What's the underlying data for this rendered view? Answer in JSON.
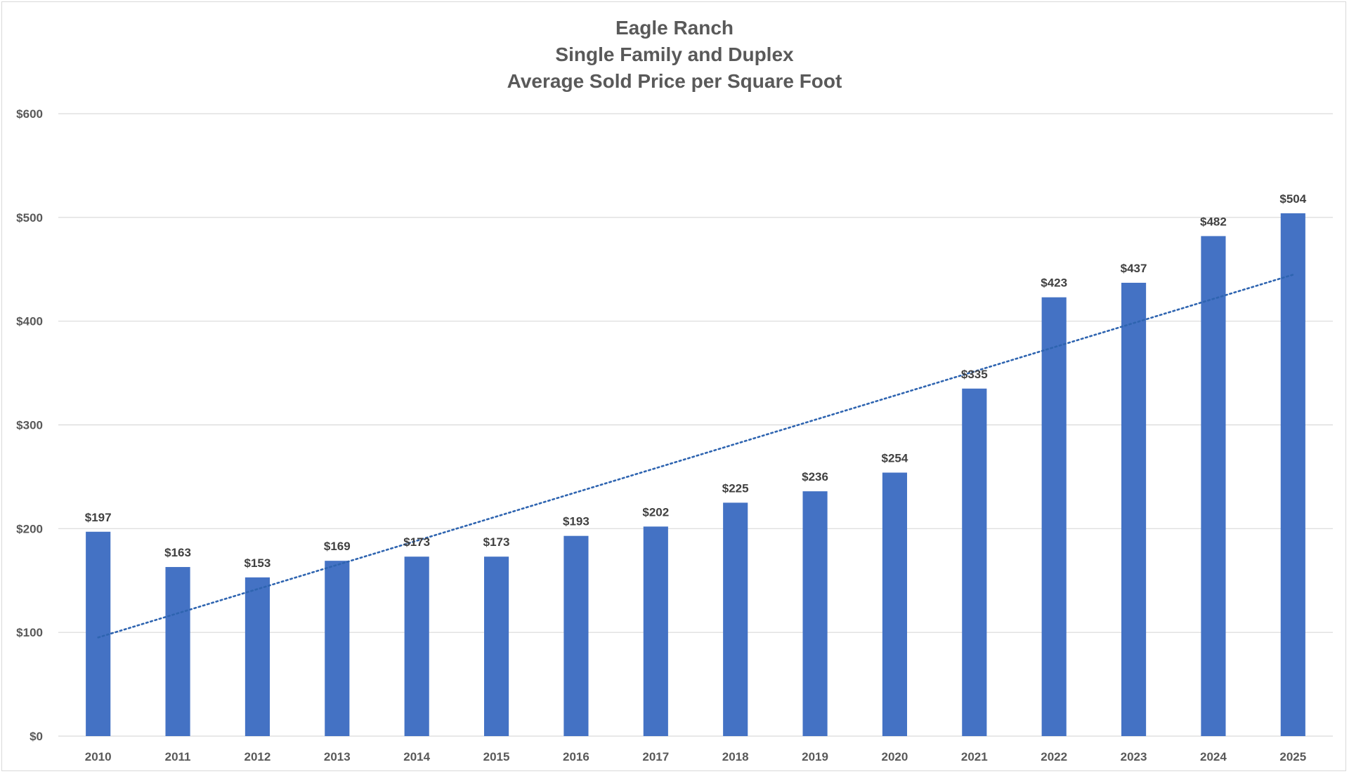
{
  "chart_data": {
    "type": "bar",
    "title_lines": [
      "Eagle Ranch",
      "Single Family and Duplex",
      "Average Sold Price per Square Foot"
    ],
    "categories": [
      "2010",
      "2011",
      "2012",
      "2013",
      "2014",
      "2015",
      "2016",
      "2017",
      "2018",
      "2019",
      "2020",
      "2021",
      "2022",
      "2023",
      "2024",
      "2025"
    ],
    "values": [
      197,
      163,
      153,
      169,
      173,
      173,
      193,
      202,
      225,
      236,
      254,
      335,
      423,
      437,
      482,
      504
    ],
    "data_labels": [
      "$197",
      "$163",
      "$153",
      "$169",
      "$173",
      "$173",
      "$193",
      "$202",
      "$225",
      "$236",
      "$254",
      "$335",
      "$423",
      "$437",
      "$482",
      "$504"
    ],
    "y_ticks": [
      0,
      100,
      200,
      300,
      400,
      500,
      600
    ],
    "y_tick_labels": [
      "$0",
      "$100",
      "$200",
      "$300",
      "$400",
      "$500",
      "$600"
    ],
    "ylim": [
      0,
      600
    ],
    "grid": true,
    "legend": "none",
    "trendline": {
      "type": "linear",
      "style": "dotted"
    },
    "colors": {
      "bar": "#4472c4",
      "trendline": "#2e64b0",
      "grid": "#d9d9d9",
      "title": "#595959"
    }
  }
}
